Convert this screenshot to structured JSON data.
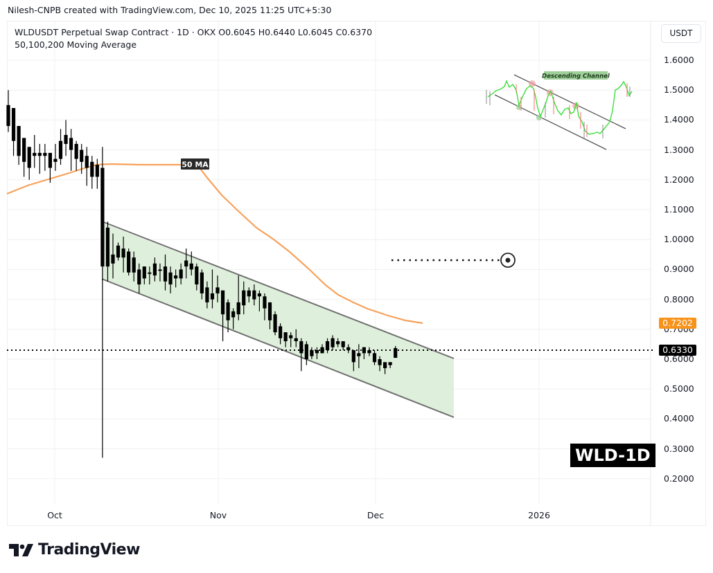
{
  "credit": "Nilesh-CNPB created with TradingView.com, Dec 10, 2025 11:25 UTC+5:30",
  "legend": {
    "symbol_line": "WLDUSDT Perpetual Swap Contract · 1D · OKX  O0.6045  H0.6440  L0.6045  C0.6370",
    "indicator_line": "50,100,200 Moving Average"
  },
  "currency": "USDT",
  "y_axis": [
    "1.6000",
    "1.5000",
    "1.4000",
    "1.3000",
    "1.2000",
    "1.1000",
    "1.0000",
    "0.9000",
    "0.8000",
    "0.7000",
    "0.6000",
    "0.5000",
    "0.4000",
    "0.3000",
    "0.2000"
  ],
  "x_axis": [
    "Oct",
    "Nov",
    "Dec",
    "2026"
  ],
  "price_tags": {
    "ma50": "0.7202",
    "last": "0.6330"
  },
  "annotations": {
    "ma_label": "50 MA",
    "inset_label": "Descending Channel",
    "ticker_badge": "WLD-1D"
  },
  "brand": "TradingView",
  "colors": {
    "ma50": "#f7a15a",
    "ma_tag": "#f7931a",
    "channel_fill": "#dcefd9",
    "channel_line": "#6f6f6f",
    "candle": "#000000",
    "grid": "#f0f0f0"
  },
  "chart_data": {
    "type": "candlestick",
    "title": "WLDUSDT Perpetual Swap Contract · 1D · OKX",
    "subtitle": "50,100,200 Moving Average",
    "xlabel": "",
    "ylabel": "USDT",
    "ylim": [
      0.12,
      1.68
    ],
    "x_ticks": [
      "Oct",
      "Nov",
      "Dec",
      "2026"
    ],
    "y_ticks": [
      1.6,
      1.5,
      1.4,
      1.3,
      1.2,
      1.1,
      1.0,
      0.9,
      0.8,
      0.7,
      0.6,
      0.5,
      0.4,
      0.3,
      0.2
    ],
    "last_candle": {
      "open": 0.6045,
      "high": 0.644,
      "low": 0.6045,
      "close": 0.637
    },
    "last_price": 0.633,
    "ma50_last": 0.7202,
    "candles_approx": [
      {
        "o": 1.45,
        "h": 1.5,
        "l": 1.36,
        "c": 1.38
      },
      {
        "o": 1.44,
        "h": 1.43,
        "l": 1.28,
        "c": 1.33
      },
      {
        "o": 1.38,
        "h": 1.38,
        "l": 1.25,
        "c": 1.28
      },
      {
        "o": 1.34,
        "h": 1.33,
        "l": 1.21,
        "c": 1.26
      },
      {
        "o": 1.31,
        "h": 1.3,
        "l": 1.2,
        "c": 1.24
      },
      {
        "o": 1.29,
        "h": 1.35,
        "l": 1.24,
        "c": 1.28
      },
      {
        "o": 1.28,
        "h": 1.32,
        "l": 1.22,
        "c": 1.29
      },
      {
        "o": 1.28,
        "h": 1.32,
        "l": 1.23,
        "c": 1.29
      },
      {
        "o": 1.29,
        "h": 1.29,
        "l": 1.19,
        "c": 1.24
      },
      {
        "o": 1.26,
        "h": 1.32,
        "l": 1.23,
        "c": 1.27
      },
      {
        "o": 1.27,
        "h": 1.37,
        "l": 1.25,
        "c": 1.33
      },
      {
        "o": 1.32,
        "h": 1.4,
        "l": 1.28,
        "c": 1.35
      },
      {
        "o": 1.34,
        "h": 1.37,
        "l": 1.23,
        "c": 1.3
      },
      {
        "o": 1.32,
        "h": 1.33,
        "l": 1.23,
        "c": 1.27
      },
      {
        "o": 1.3,
        "h": 1.32,
        "l": 1.22,
        "c": 1.26
      },
      {
        "o": 1.28,
        "h": 1.31,
        "l": 1.18,
        "c": 1.24
      },
      {
        "o": 1.26,
        "h": 1.28,
        "l": 1.17,
        "c": 1.21
      },
      {
        "o": 1.25,
        "h": 1.27,
        "l": 1.17,
        "c": 1.21
      },
      {
        "o": 1.24,
        "h": 1.31,
        "l": 0.27,
        "c": 0.91
      },
      {
        "o": 0.91,
        "h": 1.06,
        "l": 0.86,
        "c": 1.04
      },
      {
        "o": 0.95,
        "h": 1.02,
        "l": 0.87,
        "c": 0.92
      },
      {
        "o": 0.94,
        "h": 0.99,
        "l": 0.93,
        "c": 0.98
      },
      {
        "o": 0.97,
        "h": 1.01,
        "l": 0.89,
        "c": 0.94
      },
      {
        "o": 0.96,
        "h": 0.97,
        "l": 0.88,
        "c": 0.89
      },
      {
        "o": 0.94,
        "h": 0.96,
        "l": 0.86,
        "c": 0.89
      },
      {
        "o": 0.9,
        "h": 0.92,
        "l": 0.82,
        "c": 0.85
      },
      {
        "o": 0.87,
        "h": 0.91,
        "l": 0.85,
        "c": 0.91
      },
      {
        "o": 0.89,
        "h": 0.91,
        "l": 0.85,
        "c": 0.89
      },
      {
        "o": 0.88,
        "h": 0.94,
        "l": 0.86,
        "c": 0.92
      },
      {
        "o": 0.9,
        "h": 0.92,
        "l": 0.86,
        "c": 0.9
      },
      {
        "o": 0.91,
        "h": 0.95,
        "l": 0.83,
        "c": 0.86
      },
      {
        "o": 0.89,
        "h": 0.91,
        "l": 0.82,
        "c": 0.85
      },
      {
        "o": 0.88,
        "h": 0.9,
        "l": 0.84,
        "c": 0.87
      },
      {
        "o": 0.87,
        "h": 0.92,
        "l": 0.85,
        "c": 0.9
      },
      {
        "o": 0.91,
        "h": 0.97,
        "l": 0.87,
        "c": 0.93
      },
      {
        "o": 0.92,
        "h": 0.96,
        "l": 0.88,
        "c": 0.9
      },
      {
        "o": 0.91,
        "h": 0.92,
        "l": 0.83,
        "c": 0.85
      },
      {
        "o": 0.89,
        "h": 0.9,
        "l": 0.8,
        "c": 0.82
      },
      {
        "o": 0.84,
        "h": 0.86,
        "l": 0.77,
        "c": 0.79
      },
      {
        "o": 0.8,
        "h": 0.9,
        "l": 0.77,
        "c": 0.82
      },
      {
        "o": 0.84,
        "h": 0.88,
        "l": 0.79,
        "c": 0.82
      },
      {
        "o": 0.83,
        "h": 0.82,
        "l": 0.66,
        "c": 0.75
      },
      {
        "o": 0.79,
        "h": 0.8,
        "l": 0.69,
        "c": 0.73
      },
      {
        "o": 0.76,
        "h": 0.77,
        "l": 0.7,
        "c": 0.74
      },
      {
        "o": 0.75,
        "h": 0.88,
        "l": 0.73,
        "c": 0.79
      },
      {
        "o": 0.78,
        "h": 0.86,
        "l": 0.75,
        "c": 0.83
      },
      {
        "o": 0.81,
        "h": 0.84,
        "l": 0.79,
        "c": 0.83
      },
      {
        "o": 0.83,
        "h": 0.85,
        "l": 0.78,
        "c": 0.8
      },
      {
        "o": 0.82,
        "h": 0.83,
        "l": 0.76,
        "c": 0.81
      },
      {
        "o": 0.81,
        "h": 0.82,
        "l": 0.73,
        "c": 0.77
      },
      {
        "o": 0.79,
        "h": 0.79,
        "l": 0.7,
        "c": 0.73
      },
      {
        "o": 0.75,
        "h": 0.76,
        "l": 0.68,
        "c": 0.69
      },
      {
        "o": 0.71,
        "h": 0.72,
        "l": 0.65,
        "c": 0.67
      },
      {
        "o": 0.69,
        "h": 0.69,
        "l": 0.64,
        "c": 0.66
      },
      {
        "o": 0.68,
        "h": 0.69,
        "l": 0.64,
        "c": 0.67
      },
      {
        "o": 0.67,
        "h": 0.7,
        "l": 0.64,
        "c": 0.66
      },
      {
        "o": 0.66,
        "h": 0.67,
        "l": 0.56,
        "c": 0.62
      },
      {
        "o": 0.65,
        "h": 0.66,
        "l": 0.58,
        "c": 0.6
      },
      {
        "o": 0.63,
        "h": 0.64,
        "l": 0.6,
        "c": 0.61
      },
      {
        "o": 0.62,
        "h": 0.64,
        "l": 0.6,
        "c": 0.63
      },
      {
        "o": 0.62,
        "h": 0.65,
        "l": 0.62,
        "c": 0.64
      },
      {
        "o": 0.63,
        "h": 0.67,
        "l": 0.62,
        "c": 0.66
      },
      {
        "o": 0.64,
        "h": 0.68,
        "l": 0.63,
        "c": 0.67
      },
      {
        "o": 0.65,
        "h": 0.67,
        "l": 0.64,
        "c": 0.66
      },
      {
        "o": 0.66,
        "h": 0.66,
        "l": 0.63,
        "c": 0.64
      },
      {
        "o": 0.64,
        "h": 0.65,
        "l": 0.62,
        "c": 0.63
      },
      {
        "o": 0.63,
        "h": 0.63,
        "l": 0.56,
        "c": 0.59
      },
      {
        "o": 0.61,
        "h": 0.65,
        "l": 0.57,
        "c": 0.62
      },
      {
        "o": 0.62,
        "h": 0.64,
        "l": 0.6,
        "c": 0.64
      },
      {
        "o": 0.63,
        "h": 0.64,
        "l": 0.61,
        "c": 0.62
      },
      {
        "o": 0.62,
        "h": 0.63,
        "l": 0.58,
        "c": 0.59
      },
      {
        "o": 0.6,
        "h": 0.61,
        "l": 0.56,
        "c": 0.58
      },
      {
        "o": 0.59,
        "h": 0.59,
        "l": 0.55,
        "c": 0.57
      },
      {
        "o": 0.58,
        "h": 0.59,
        "l": 0.57,
        "c": 0.59
      },
      {
        "o": 0.6045,
        "h": 0.644,
        "l": 0.6045,
        "c": 0.637
      }
    ],
    "ma50_path_approx": [
      {
        "x": "Sep 23",
        "y": 1.16
      },
      {
        "x": "Oct 1",
        "y": 1.2
      },
      {
        "x": "Oct 8",
        "y": 1.25
      },
      {
        "x": "Oct 10",
        "y": 1.25
      },
      {
        "x": "Oct 26",
        "y": 1.25
      },
      {
        "x": "Oct 29",
        "y": 1.22
      },
      {
        "x": "Nov 6",
        "y": 1.06
      },
      {
        "x": "Nov 15",
        "y": 0.93
      },
      {
        "x": "Nov 25",
        "y": 0.79
      },
      {
        "x": "Dec 10",
        "y": 0.7202
      }
    ],
    "descending_channel": {
      "upper": [
        {
          "x": "Oct 10",
          "y": 1.06
        },
        {
          "x": "Dec 15",
          "y": 0.605
        }
      ],
      "lower": [
        {
          "x": "Oct 10",
          "y": 0.865
        },
        {
          "x": "Dec 15",
          "y": 0.41
        }
      ],
      "fill": "#dcefd9"
    },
    "target_line": {
      "y": 0.93,
      "style": "dotted",
      "x_start": "Nov 29",
      "x_end": "Dec 28"
    },
    "last_price_line": {
      "y": 0.633,
      "style": "dotted"
    },
    "inset": {
      "label": "Descending Channel",
      "description": "Illustrative descending channel pattern with breakout"
    }
  }
}
